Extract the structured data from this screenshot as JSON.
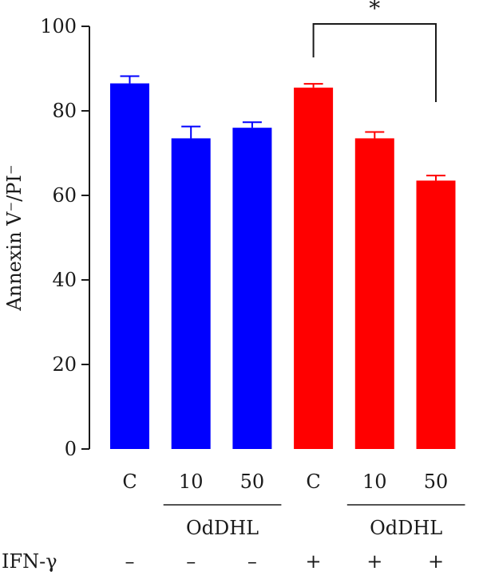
{
  "chart_data": {
    "type": "bar",
    "categories": [
      "C",
      "10",
      "50",
      "C",
      "10",
      "50"
    ],
    "values": [
      86.5,
      73.5,
      76.0,
      85.5,
      73.5,
      63.5
    ],
    "errors": [
      1.7,
      2.8,
      1.3,
      0.9,
      1.5,
      1.2
    ],
    "bar_colors": [
      "#0000ff",
      "#0000ff",
      "#0000ff",
      "#ff0000",
      "#ff0000",
      "#ff0000"
    ],
    "ylabel": "Annexin V⁻/PI⁻",
    "ylim": [
      0,
      100
    ],
    "yticks": [
      "0",
      "20",
      "40",
      "60",
      "80",
      "100"
    ],
    "grid": false,
    "group_labels": [
      {
        "text": "OdDHL",
        "from_index": 1,
        "to_index": 2
      },
      {
        "text": "OdDHL",
        "from_index": 4,
        "to_index": 5
      }
    ],
    "row_label": "IFN-γ",
    "row_values": [
      "–",
      "–",
      "–",
      "+",
      "+",
      "+"
    ],
    "significance": {
      "from_index": 3,
      "to_index": 5,
      "label": "*"
    }
  }
}
